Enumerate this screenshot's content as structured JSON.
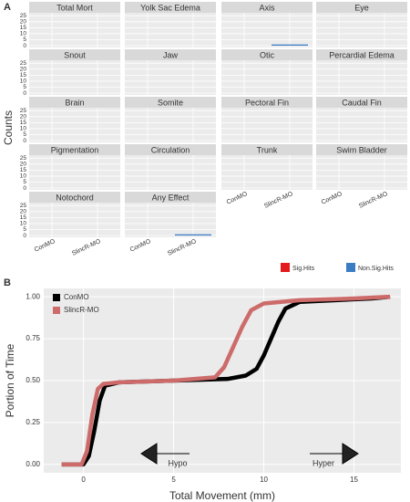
{
  "chart_data": [
    {
      "type": "facet-bar",
      "panel_label": "A",
      "y_label": "Counts",
      "categories": [
        "ConMO",
        "SlincR-MO"
      ],
      "ylim": [
        -1.5,
        27.5
      ],
      "yticks": [
        0,
        5,
        10,
        15,
        20,
        25
      ],
      "legend": [
        {
          "name": "Sig.Hits",
          "color": "#e41a1c"
        },
        {
          "name": "Non.Sig.Hits",
          "color": "#3a7dc4"
        }
      ],
      "facets": [
        {
          "title": "Total Mort",
          "values": [
            [
              0,
              0
            ],
            [
              0,
              0
            ]
          ]
        },
        {
          "title": "Yolk Sac Edema",
          "values": [
            [
              0,
              0
            ],
            [
              0,
              0
            ]
          ]
        },
        {
          "title": "Axis",
          "values": [
            [
              0,
              0
            ],
            [
              0,
              1
            ]
          ]
        },
        {
          "title": "Eye",
          "values": [
            [
              0,
              0
            ],
            [
              0,
              0
            ]
          ]
        },
        {
          "title": "Snout",
          "values": [
            [
              0,
              0
            ],
            [
              0,
              0
            ]
          ]
        },
        {
          "title": "Jaw",
          "values": [
            [
              0,
              0
            ],
            [
              0,
              0
            ]
          ]
        },
        {
          "title": "Otic",
          "values": [
            [
              0,
              0
            ],
            [
              0,
              0
            ]
          ]
        },
        {
          "title": "Percardial Edema",
          "values": [
            [
              0,
              0
            ],
            [
              0,
              0
            ]
          ]
        },
        {
          "title": "Brain",
          "values": [
            [
              0,
              0
            ],
            [
              0,
              0
            ]
          ]
        },
        {
          "title": "Somite",
          "values": [
            [
              0,
              0
            ],
            [
              0,
              0
            ]
          ]
        },
        {
          "title": "Pectoral Fin",
          "values": [
            [
              0,
              0
            ],
            [
              0,
              0
            ]
          ]
        },
        {
          "title": "Caudal Fin",
          "values": [
            [
              0,
              0
            ],
            [
              0,
              0
            ]
          ]
        },
        {
          "title": "Pigmentation",
          "values": [
            [
              0,
              0
            ],
            [
              0,
              0
            ]
          ]
        },
        {
          "title": "Circulation",
          "values": [
            [
              0,
              0
            ],
            [
              0,
              0
            ]
          ]
        },
        {
          "title": "Trunk",
          "values": [
            [
              0,
              0
            ],
            [
              0,
              0
            ]
          ]
        },
        {
          "title": "Swim Bladder",
          "values": [
            [
              0,
              0
            ],
            [
              0,
              0
            ]
          ]
        },
        {
          "title": "Notochord",
          "values": [
            [
              0,
              0
            ],
            [
              0,
              0
            ]
          ]
        },
        {
          "title": "Any Effect",
          "values": [
            [
              0,
              0
            ],
            [
              0,
              1
            ]
          ]
        }
      ]
    },
    {
      "type": "line",
      "panel_label": "B",
      "x_label": "Total Movement (mm)",
      "y_label": "Portion of Time",
      "xlim": [
        -2.2,
        17.6
      ],
      "xticks": [
        0,
        5,
        10,
        15
      ],
      "ylim": [
        -0.05,
        1.05
      ],
      "yticks": [
        {
          "value": 0,
          "label": "0.00"
        },
        {
          "value": 0.25,
          "label": "0.25"
        },
        {
          "value": 0.5,
          "label": "0.50"
        },
        {
          "value": 0.75,
          "label": "0.75"
        },
        {
          "value": 1,
          "label": "1.00"
        }
      ],
      "annotations": [
        "Hypo",
        "Hyper"
      ],
      "series": [
        {
          "name": "ConMO",
          "color": "#000000",
          "x": [
            -1.2,
            0,
            0.3,
            0.6,
            0.9,
            1.2,
            2,
            5,
            8,
            9,
            9.6,
            10,
            10.4,
            10.8,
            11.2,
            12,
            14,
            16,
            17
          ],
          "values": [
            0,
            0,
            0.05,
            0.2,
            0.38,
            0.47,
            0.49,
            0.5,
            0.51,
            0.53,
            0.57,
            0.65,
            0.75,
            0.85,
            0.93,
            0.97,
            0.98,
            0.99,
            1
          ]
        },
        {
          "name": "SlincR-MO",
          "color": "#cd6b6b",
          "x": [
            -1.2,
            -0.1,
            0.2,
            0.5,
            0.8,
            1.1,
            2,
            5,
            7.3,
            7.8,
            8.3,
            8.8,
            9.3,
            10,
            12,
            15,
            17
          ],
          "values": [
            0,
            0,
            0.08,
            0.3,
            0.45,
            0.48,
            0.49,
            0.5,
            0.52,
            0.58,
            0.7,
            0.82,
            0.92,
            0.96,
            0.98,
            0.99,
            1
          ]
        }
      ]
    }
  ]
}
